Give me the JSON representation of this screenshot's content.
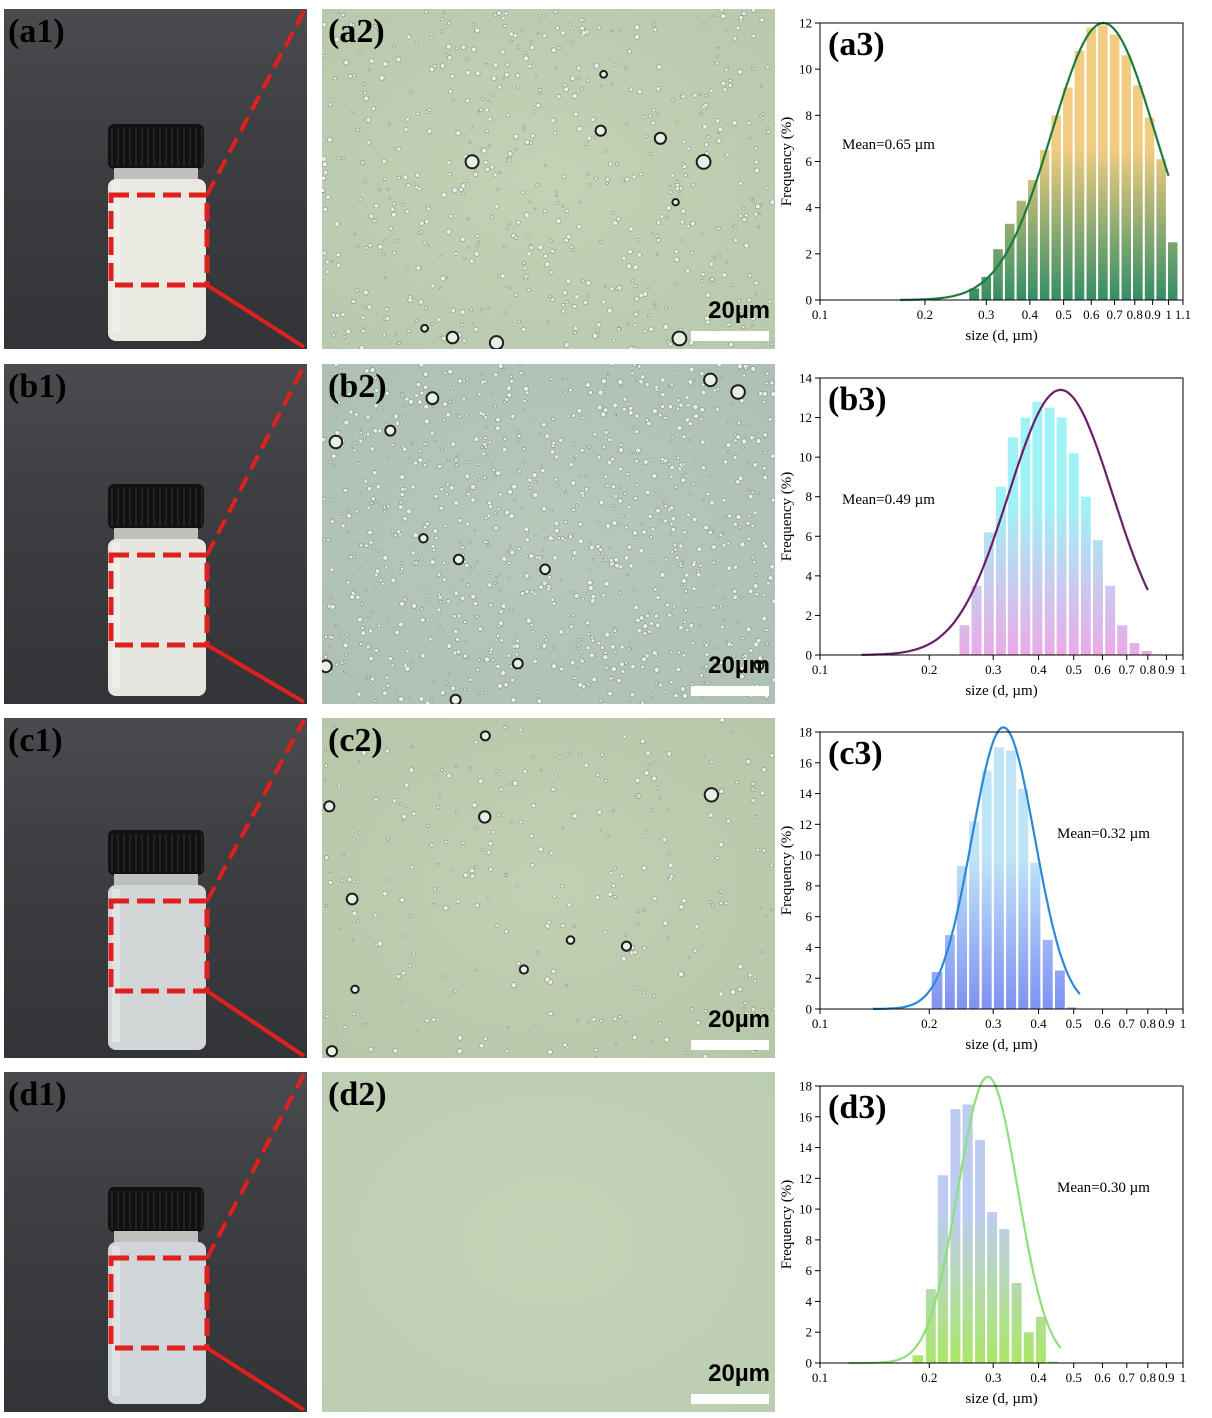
{
  "scale_label": "20µm",
  "panels": [
    {
      "photo_label": "(a1)",
      "micro_label": "(a2)",
      "liquid_color": "#e9e8e1",
      "micro_bg": "#c4d2b4",
      "micro_bg2": "#b8c9ae",
      "chart_data": {
        "type": "bar",
        "label": "(a3)",
        "mean_text": "Mean=0.65 µm",
        "xlabel": "size (d, µm)",
        "ylabel": "Frequency (%)",
        "xscale": "log",
        "xlim": [
          0.1,
          1.1
        ],
        "ylim": [
          0,
          12
        ],
        "yticks": [
          0,
          2,
          4,
          6,
          8,
          10,
          12
        ],
        "xtick_values": [
          0.1,
          0.2,
          0.3,
          0.4,
          0.5,
          0.6,
          0.7,
          0.8,
          0.9,
          1,
          1.1
        ],
        "xtick_labels": [
          "0.1",
          "0.2",
          "0.3",
          "0.4",
          "0.5",
          "0.6",
          "0.7",
          "0.8",
          "0.9",
          "1",
          "1.1"
        ],
        "bar_x": [
          0.277,
          0.3,
          0.324,
          0.35,
          0.378,
          0.408,
          0.441,
          0.476,
          0.514,
          0.555,
          0.6,
          0.648,
          0.7,
          0.756,
          0.816,
          0.882,
          0.952,
          1.028
        ],
        "values": [
          0.5,
          1.0,
          2.2,
          3.3,
          4.3,
          5.2,
          6.5,
          8.0,
          9.2,
          10.8,
          11.8,
          11.9,
          11.5,
          10.6,
          9.3,
          7.9,
          6.1,
          2.5
        ],
        "fit_peak": 12.0,
        "fit_mu": 0.65,
        "fit_sigma": 0.34,
        "fit_range": [
          0.17,
          1.0
        ],
        "bar_top_color": "#f0c36a",
        "bar_bottom_color": "#117a4a",
        "fit_color": "#1e7b3a",
        "mean_pos": "left"
      }
    },
    {
      "photo_label": "(b1)",
      "micro_label": "(b2)",
      "liquid_color": "#e6e6e0",
      "micro_bg": "#b8c8bb",
      "micro_bg2": "#aebfb4",
      "chart_data": {
        "type": "bar",
        "label": "(b3)",
        "mean_text": "Mean=0.49 µm",
        "xlabel": "size (d, µm)",
        "ylabel": "Frequency (%)",
        "xscale": "log",
        "xlim": [
          0.1,
          1.0
        ],
        "ylim": [
          0,
          14
        ],
        "yticks": [
          0,
          2,
          4,
          6,
          8,
          10,
          12,
          14
        ],
        "xtick_values": [
          0.1,
          0.2,
          0.3,
          0.4,
          0.5,
          0.6,
          0.7,
          0.8,
          0.9,
          1
        ],
        "xtick_labels": [
          "0.1",
          "0.2",
          "0.3",
          "0.4",
          "0.5",
          "0.6",
          "0.7",
          "0.8",
          "0.9",
          "1"
        ],
        "bar_x": [
          0.25,
          0.27,
          0.292,
          0.315,
          0.34,
          0.368,
          0.397,
          0.429,
          0.463,
          0.5,
          0.54,
          0.583,
          0.63,
          0.68,
          0.735,
          0.794
        ],
        "values": [
          1.5,
          3.5,
          6.2,
          8.5,
          11.0,
          12.0,
          12.8,
          12.5,
          12.0,
          10.2,
          8.0,
          5.8,
          3.5,
          1.5,
          0.6,
          0.2
        ],
        "fit_peak": 13.4,
        "fit_mu": 0.46,
        "fit_sigma": 0.33,
        "fit_range": [
          0.13,
          0.8
        ],
        "bar_top_color": "#8ff0f5",
        "bar_bottom_color": "#e79be3",
        "fit_color": "#6a1f6a",
        "mean_pos": "left"
      }
    },
    {
      "photo_label": "(c1)",
      "micro_label": "(c2)",
      "liquid_color": "#d2d6d7",
      "micro_bg": "#c2d0b3",
      "micro_bg2": "#b6c7a9",
      "chart_data": {
        "type": "bar",
        "label": "(c3)",
        "mean_text": "Mean=0.32 µm",
        "xlabel": "size (d, µm)",
        "ylabel": "Frequency (%)",
        "xscale": "log",
        "xlim": [
          0.1,
          1.0
        ],
        "ylim": [
          0,
          18
        ],
        "yticks": [
          0,
          2,
          4,
          6,
          8,
          10,
          12,
          14,
          16,
          18
        ],
        "xtick_values": [
          0.1,
          0.2,
          0.3,
          0.4,
          0.5,
          0.6,
          0.7,
          0.8,
          0.9,
          1
        ],
        "xtick_labels": [
          "0.1",
          "0.2",
          "0.3",
          "0.4",
          "0.5",
          "0.6",
          "0.7",
          "0.8",
          "0.9",
          "1"
        ],
        "bar_x": [
          0.21,
          0.228,
          0.246,
          0.266,
          0.288,
          0.311,
          0.336,
          0.363,
          0.392,
          0.424,
          0.458,
          0.494
        ],
        "values": [
          2.4,
          4.8,
          9.3,
          12.2,
          15.5,
          17.0,
          16.8,
          14.3,
          9.5,
          4.5,
          2.5,
          0.1
        ],
        "fit_peak": 18.3,
        "fit_mu": 0.32,
        "fit_sigma": 0.2,
        "fit_range": [
          0.14,
          0.52
        ],
        "bar_top_color": "#b4e0f7",
        "bar_bottom_color": "#6a7ef0",
        "fit_color": "#2a8ad8",
        "mean_pos": "right"
      }
    },
    {
      "photo_label": "(d1)",
      "micro_label": "(d2)",
      "liquid_color": "#cfd5d8",
      "micro_bg": "#c4d3b6",
      "micro_bg2": "#bccdb2",
      "chart_data": {
        "type": "bar",
        "label": "(d3)",
        "mean_text": "Mean=0.30 µm",
        "xlabel": "size (d, µm)",
        "ylabel": "Frequency (%)",
        "xscale": "log",
        "xlim": [
          0.1,
          1.0
        ],
        "ylim": [
          0,
          18
        ],
        "yticks": [
          0,
          2,
          4,
          6,
          8,
          10,
          12,
          14,
          16,
          18
        ],
        "xtick_values": [
          0.1,
          0.2,
          0.3,
          0.4,
          0.5,
          0.6,
          0.7,
          0.8,
          0.9,
          1
        ],
        "xtick_labels": [
          "0.1",
          "0.2",
          "0.3",
          "0.4",
          "0.5",
          "0.6",
          "0.7",
          "0.8",
          "0.9",
          "1"
        ],
        "bar_x": [
          0.186,
          0.202,
          0.218,
          0.236,
          0.255,
          0.276,
          0.298,
          0.322,
          0.348,
          0.376,
          0.406,
          0.438
        ],
        "values": [
          0.5,
          4.8,
          12.2,
          16.5,
          16.8,
          14.5,
          9.8,
          8.7,
          5.2,
          2.0,
          3.0,
          0.1
        ],
        "fit_peak": 18.6,
        "fit_mu": 0.29,
        "fit_sigma": 0.19,
        "fit_range": [
          0.12,
          0.46
        ],
        "bar_top_color": "#b3c3ef",
        "bar_bottom_color": "#9be34e",
        "fit_color": "#8ee07a",
        "mean_pos": "right"
      }
    }
  ]
}
